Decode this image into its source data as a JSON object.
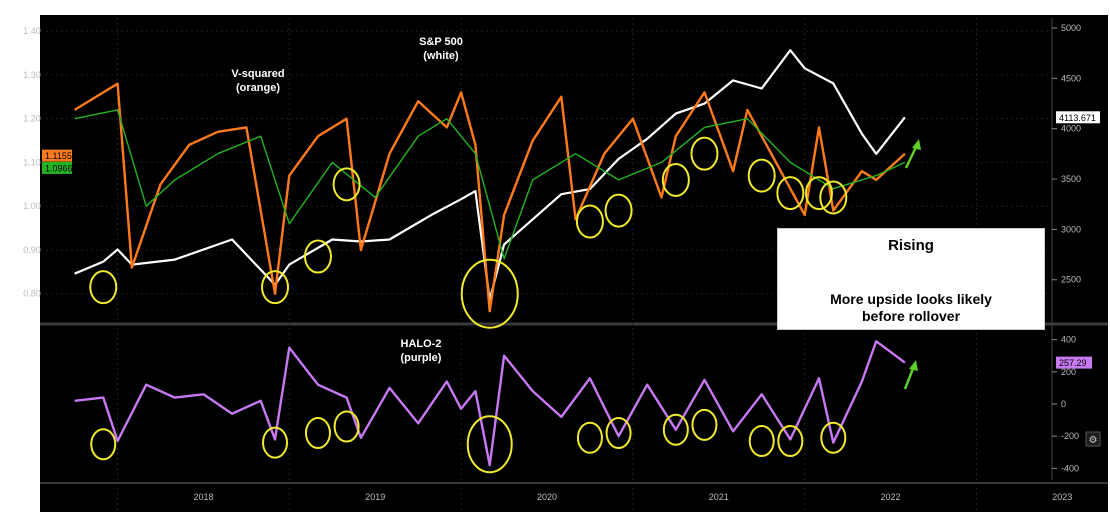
{
  "chart_data": [
    {
      "type": "line",
      "panel": "upper",
      "series": [
        {
          "name": "V-squared",
          "color": "#ff7a1a",
          "axis": "left",
          "x": [
            "2017-10",
            "2017-12",
            "2018-01",
            "2018-02",
            "2018-04",
            "2018-06",
            "2018-08",
            "2018-10",
            "2018-12",
            "2019-01",
            "2019-03",
            "2019-05",
            "2019-06",
            "2019-08",
            "2019-10",
            "2019-12",
            "2020-01",
            "2020-02",
            "2020-03",
            "2020-04",
            "2020-06",
            "2020-08",
            "2020-09",
            "2020-11",
            "2021-01",
            "2021-03",
            "2021-04",
            "2021-06",
            "2021-08",
            "2021-09",
            "2021-11",
            "2022-01",
            "2022-02",
            "2022-03",
            "2022-05",
            "2022-06",
            "2022-08"
          ],
          "values": [
            1.22,
            1.26,
            1.28,
            0.86,
            1.05,
            1.14,
            1.17,
            1.18,
            0.8,
            1.07,
            1.16,
            1.2,
            0.9,
            1.12,
            1.24,
            1.18,
            1.26,
            1.14,
            0.76,
            0.98,
            1.15,
            1.25,
            0.97,
            1.12,
            1.2,
            1.02,
            1.16,
            1.26,
            1.08,
            1.22,
            1.1,
            0.98,
            1.18,
            0.99,
            1.08,
            1.06,
            1.12
          ]
        },
        {
          "name": "",
          "color": "#23b323",
          "axis": "left",
          "x": [
            "2017-10",
            "2018-01",
            "2018-03",
            "2018-05",
            "2018-08",
            "2018-11",
            "2019-01",
            "2019-04",
            "2019-07",
            "2019-10",
            "2019-12",
            "2020-02",
            "2020-04",
            "2020-06",
            "2020-09",
            "2020-12",
            "2021-03",
            "2021-06",
            "2021-09",
            "2021-12",
            "2022-03",
            "2022-06",
            "2022-08"
          ],
          "values": [
            1.2,
            1.22,
            1.0,
            1.06,
            1.12,
            1.16,
            0.96,
            1.1,
            1.02,
            1.16,
            1.2,
            1.12,
            0.88,
            1.06,
            1.12,
            1.06,
            1.1,
            1.18,
            1.2,
            1.1,
            1.04,
            1.07,
            1.1
          ]
        },
        {
          "name": "S&P 500",
          "color": "#ffffff",
          "axis": "right",
          "x": [
            "2017-10",
            "2017-12",
            "2018-01",
            "2018-02",
            "2018-05",
            "2018-09",
            "2018-12",
            "2019-01",
            "2019-04",
            "2019-06",
            "2019-08",
            "2019-11",
            "2020-01",
            "2020-02",
            "2020-03",
            "2020-04",
            "2020-06",
            "2020-08",
            "2020-10",
            "2020-12",
            "2021-02",
            "2021-04",
            "2021-06",
            "2021-08",
            "2021-10",
            "2021-12",
            "2022-01",
            "2022-03",
            "2022-05",
            "2022-06",
            "2022-08"
          ],
          "values": [
            2560,
            2680,
            2800,
            2650,
            2700,
            2900,
            2450,
            2650,
            2900,
            2880,
            2900,
            3150,
            3300,
            3380,
            2300,
            2850,
            3100,
            3350,
            3400,
            3700,
            3900,
            4150,
            4250,
            4480,
            4400,
            4780,
            4600,
            4450,
            3950,
            3750,
            4113.67
          ]
        }
      ],
      "left_axis": {
        "ticks": [
          "0.80",
          "0.90",
          "1.00",
          "1.10",
          "1.20",
          "1.30",
          "1.40"
        ],
        "range": [
          0.74,
          1.43
        ]
      },
      "right_axis": {
        "ticks": [
          "2500",
          "3000",
          "3500",
          "4000",
          "4500",
          "5000"
        ],
        "range": [
          2100,
          5100
        ]
      },
      "labels": [
        {
          "id": "vsq",
          "text": "V-squared\n(orange)"
        },
        {
          "id": "spx",
          "text": "S&P 500\n(white)"
        }
      ],
      "badges": {
        "left_orange": "1.1155",
        "left_green": "1.0966",
        "right_white": "4113.671"
      },
      "highlight_circles": [
        {
          "x": "2017-12",
          "y": 0.815
        },
        {
          "x": "2018-12",
          "y": 0.815
        },
        {
          "x": "2019-03",
          "y": 0.885
        },
        {
          "x": "2019-05",
          "y": 1.05
        },
        {
          "x": "2020-03",
          "y": 0.8
        },
        {
          "x": "2020-10",
          "y": 0.965
        },
        {
          "x": "2020-12",
          "y": 0.99
        },
        {
          "x": "2021-04",
          "y": 1.06
        },
        {
          "x": "2021-06",
          "y": 1.12
        },
        {
          "x": "2021-10",
          "y": 1.07
        },
        {
          "x": "2021-12",
          "y": 1.03
        },
        {
          "x": "2022-02",
          "y": 1.03
        },
        {
          "x": "2022-03",
          "y": 1.02
        }
      ]
    },
    {
      "type": "line",
      "panel": "lower",
      "series": [
        {
          "name": "HALO-2",
          "color": "#c679f2",
          "x": [
            "2017-10",
            "2017-12",
            "2018-01",
            "2018-03",
            "2018-05",
            "2018-07",
            "2018-09",
            "2018-11",
            "2018-12",
            "2019-01",
            "2019-03",
            "2019-05",
            "2019-06",
            "2019-08",
            "2019-10",
            "2019-12",
            "2020-01",
            "2020-02",
            "2020-03",
            "2020-04",
            "2020-06",
            "2020-08",
            "2020-10",
            "2020-12",
            "2021-02",
            "2021-04",
            "2021-06",
            "2021-08",
            "2021-10",
            "2021-12",
            "2022-02",
            "2022-03",
            "2022-05",
            "2022-06",
            "2022-08"
          ],
          "values": [
            20,
            40,
            -230,
            120,
            40,
            60,
            -60,
            20,
            -220,
            350,
            120,
            40,
            -210,
            100,
            -120,
            140,
            -30,
            80,
            -380,
            300,
            80,
            -80,
            160,
            -200,
            120,
            -160,
            150,
            -170,
            60,
            -220,
            160,
            -240,
            140,
            390,
            257.29
          ]
        }
      ],
      "axis": {
        "ticks": [
          "400",
          "200",
          "0",
          "-200",
          "-400"
        ],
        "range": [
          -460,
          460
        ]
      },
      "labels": [
        {
          "id": "halo",
          "text": "HALO-2\n(purple)"
        }
      ],
      "badges": {
        "right_purple": "257.29"
      },
      "highlight_circles": [
        {
          "x": "2017-12",
          "y": -250
        },
        {
          "x": "2018-12",
          "y": -240
        },
        {
          "x": "2019-03",
          "y": -180
        },
        {
          "x": "2019-05",
          "y": -140
        },
        {
          "x": "2020-03",
          "y": -250
        },
        {
          "x": "2020-10",
          "y": -210
        },
        {
          "x": "2020-12",
          "y": -180
        },
        {
          "x": "2021-04",
          "y": -160
        },
        {
          "x": "2021-06",
          "y": -130
        },
        {
          "x": "2021-10",
          "y": -230
        },
        {
          "x": "2021-12",
          "y": -230
        },
        {
          "x": "2022-03",
          "y": -210
        }
      ]
    }
  ],
  "x_axis": {
    "ticks": [
      "2018",
      "2019",
      "2020",
      "2021",
      "2022",
      "2023"
    ],
    "range": [
      "2017-08",
      "2023-06"
    ]
  },
  "callout": {
    "title": "Rising",
    "line1": "More upside looks likely",
    "line2": "before rollover"
  }
}
